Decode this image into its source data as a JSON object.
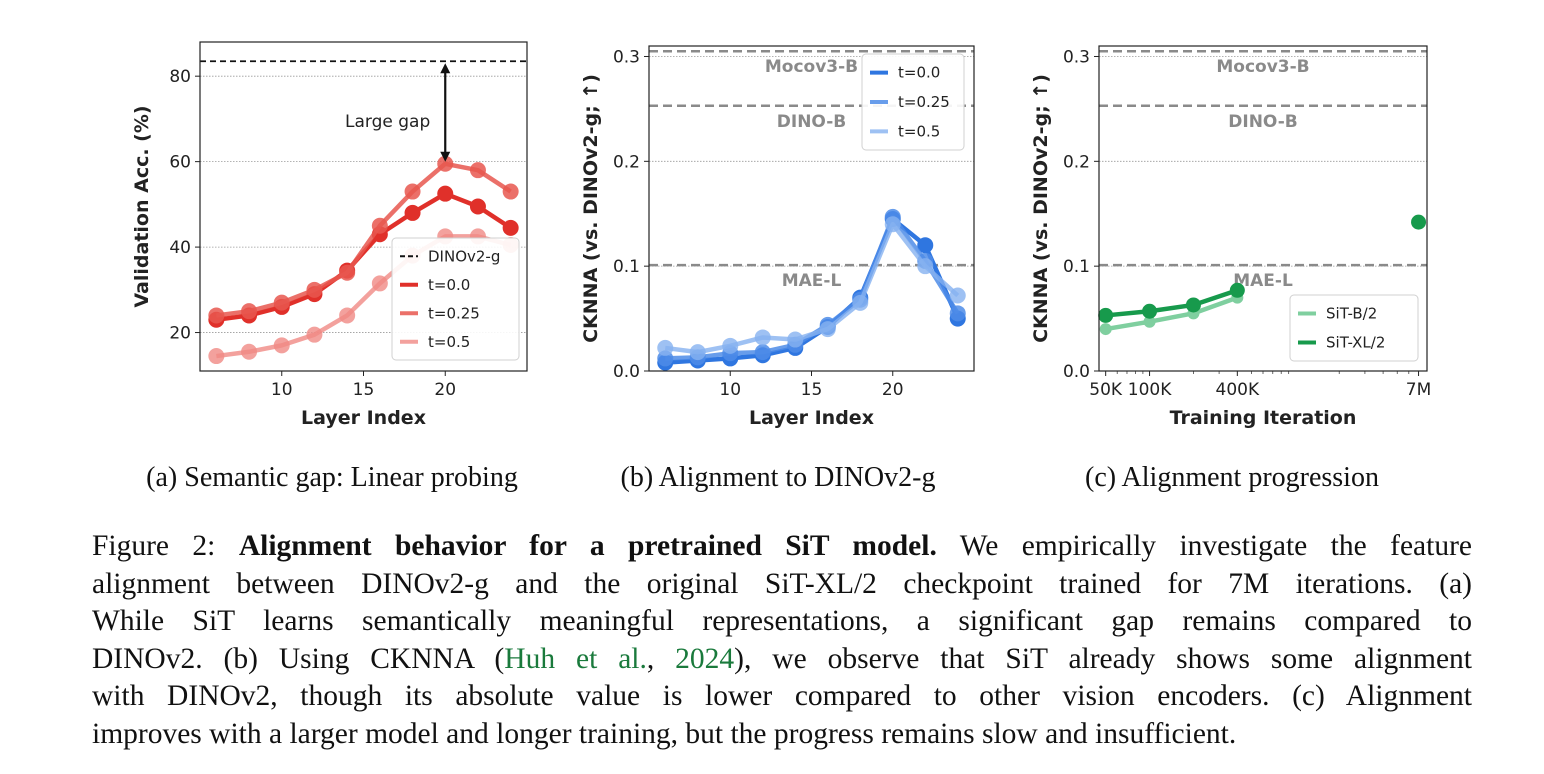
{
  "chart_data": [
    {
      "type": "line",
      "panel": "a",
      "xlabel": "Layer Index",
      "ylabel": "Validation Acc. (%)",
      "xlim": [
        5,
        25
      ],
      "ylim": [
        11,
        88
      ],
      "xticks": [
        10,
        15,
        20
      ],
      "yticks": [
        20,
        40,
        60,
        80
      ],
      "subcaption": "(a) Semantic gap: Linear probing",
      "annotation": "Large gap",
      "ref_lines": [
        {
          "label": "DINOv2-g",
          "value": 83.5,
          "color": "#111111"
        }
      ],
      "x": [
        6,
        8,
        10,
        12,
        14,
        16,
        18,
        20,
        22,
        24
      ],
      "series": [
        {
          "name": "t=0.0",
          "color": "#e0302a",
          "opacity": 1.0,
          "values": [
            23.0,
            24.0,
            26.0,
            29.0,
            34.5,
            43.0,
            48.0,
            52.5,
            49.5,
            44.5
          ]
        },
        {
          "name": "t=0.25",
          "color": "#e8574f",
          "opacity": 0.85,
          "values": [
            24.0,
            25.0,
            27.0,
            30.0,
            34.0,
            45.0,
            53.0,
            59.5,
            58.0,
            53.0
          ]
        },
        {
          "name": "t=0.5",
          "color": "#f08a84",
          "opacity": 0.8,
          "values": [
            14.5,
            15.5,
            17.0,
            19.5,
            24.0,
            31.5,
            38.0,
            42.5,
            42.5,
            40.5
          ]
        }
      ]
    },
    {
      "type": "line",
      "panel": "b",
      "xlabel": "Layer Index",
      "ylabel": "CKNNA (vs. DINOv2-g; ↑)",
      "xlim": [
        5,
        25
      ],
      "ylim": [
        0,
        0.31
      ],
      "xticks": [
        10,
        15,
        20
      ],
      "yticks": [
        0.0,
        0.1,
        0.2,
        0.3
      ],
      "subcaption": "(b) Alignment to DINOv2-g",
      "ref_lines": [
        {
          "label": "Mocov3-B",
          "value": 0.305
        },
        {
          "label": "DINO-B",
          "value": 0.253
        },
        {
          "label": "MAE-L",
          "value": 0.101
        }
      ],
      "x": [
        6,
        8,
        10,
        12,
        14,
        16,
        18,
        20,
        22,
        24
      ],
      "series": [
        {
          "name": "t=0.0",
          "color": "#2f76e0",
          "opacity": 1.0,
          "values": [
            0.008,
            0.01,
            0.012,
            0.015,
            0.022,
            0.042,
            0.07,
            0.145,
            0.12,
            0.05
          ]
        },
        {
          "name": "t=0.25",
          "color": "#4d8ce8",
          "opacity": 0.85,
          "values": [
            0.012,
            0.013,
            0.017,
            0.018,
            0.025,
            0.044,
            0.068,
            0.147,
            0.105,
            0.055
          ]
        },
        {
          "name": "t=0.5",
          "color": "#86b2f0",
          "opacity": 0.8,
          "values": [
            0.022,
            0.018,
            0.024,
            0.032,
            0.03,
            0.04,
            0.065,
            0.14,
            0.1,
            0.072
          ]
        }
      ]
    },
    {
      "type": "scatter-line",
      "panel": "c",
      "xlabel": "Training Iteration",
      "ylabel": "CKNNA (vs. DINOv2-g; ↑)",
      "xscale": "log",
      "xlim": [
        45000,
        8000000
      ],
      "ylim": [
        0,
        0.31
      ],
      "xticks": [
        {
          "v": 50000,
          "label": "50K"
        },
        {
          "v": 100000,
          "label": "100K"
        },
        {
          "v": 400000,
          "label": "400K"
        },
        {
          "v": 7000000,
          "label": "7M"
        }
      ],
      "yticks": [
        0.0,
        0.1,
        0.2,
        0.3
      ],
      "subcaption": "(c) Alignment progression",
      "ref_lines": [
        {
          "label": "Mocov3-B",
          "value": 0.305
        },
        {
          "label": "DINO-B",
          "value": 0.253
        },
        {
          "label": "MAE-L",
          "value": 0.101
        }
      ],
      "series": [
        {
          "name": "SiT-B/2",
          "color": "#7fcf9f",
          "x": [
            50000,
            100000,
            200000,
            400000
          ],
          "values": [
            0.04,
            0.047,
            0.055,
            0.07
          ]
        },
        {
          "name": "SiT-XL/2",
          "color": "#179a4c",
          "x": [
            50000,
            100000,
            200000,
            400000,
            7000000
          ],
          "values": [
            0.053,
            0.057,
            0.063,
            0.077,
            0.142
          ]
        }
      ]
    }
  ],
  "caption": {
    "label": "Figure 2:",
    "title": "Alignment behavior for a pretrained SiT model.",
    "lines": [
      "We empirically investigate the feature",
      "alignment between DINOv2-g and the original SiT-XL/2 checkpoint trained for 7M iterations. (a)",
      "While SiT learns semantically meaningful representations, a significant gap remains compared to",
      "DINOv2. (b) Using CKNNA (",
      "Huh et al.",
      ", ",
      "2024",
      "), we observe that SiT already shows some alignment",
      "with DINOv2, though its absolute value is lower compared to other vision encoders. (c) Alignment",
      "improves with a larger model and longer training, but the progress remains slow and insufficient."
    ]
  }
}
